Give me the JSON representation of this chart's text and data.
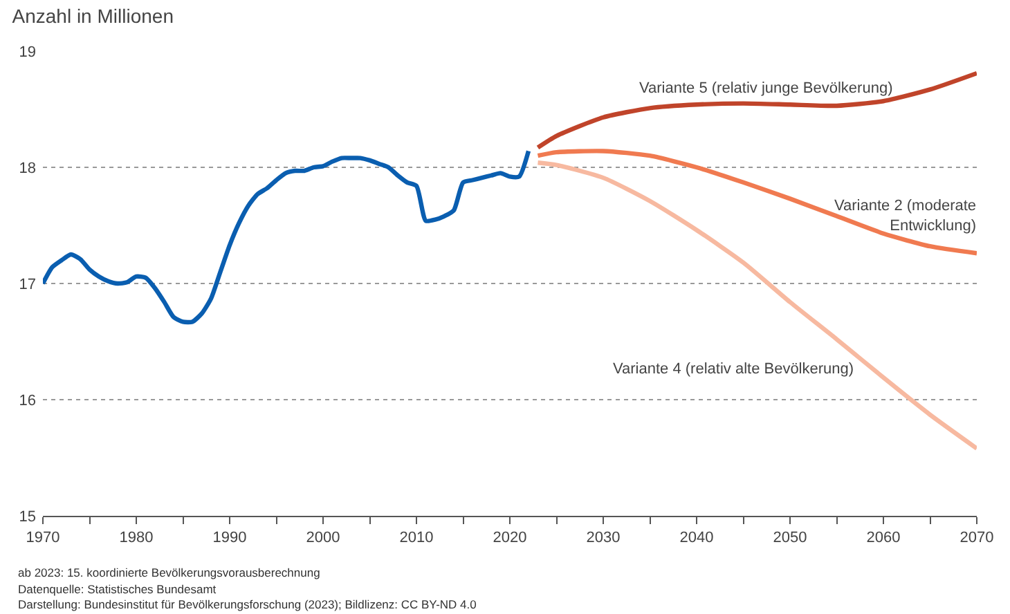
{
  "chart_data": {
    "type": "line",
    "ylabel": "Anzahl in Millionen",
    "xlim": [
      1970,
      2070
    ],
    "xticks": [
      1970,
      {
        "value": 1975,
        "label": null
      },
      1980,
      {
        "value": 1985,
        "label": null
      },
      1990,
      {
        "value": 1995,
        "label": null
      },
      2000,
      {
        "value": 2005,
        "label": null
      },
      2010,
      {
        "value": 2015,
        "label": null
      },
      2020,
      {
        "value": 2025,
        "label": null
      },
      2030,
      {
        "value": 2035,
        "label": null
      },
      2040,
      {
        "value": 2045,
        "label": null
      },
      2050,
      {
        "value": 2055,
        "label": null
      },
      2060,
      {
        "value": 2065,
        "label": null
      },
      2070
    ],
    "ylim": [
      15,
      19
    ],
    "yticks": [
      15,
      16,
      17,
      18,
      19
    ],
    "grid": "y",
    "legend": false,
    "line_style": "solid",
    "marker": "none",
    "series": [
      {
        "color": "#0a5eb0",
        "x": [
          1970,
          1971,
          1972,
          1973,
          1974,
          1975,
          1976,
          1977,
          1978,
          1979,
          1980,
          1981,
          1982,
          1983,
          1984,
          1985,
          1986,
          1987,
          1988,
          1989,
          1990,
          1991,
          1992,
          1993,
          1994,
          1995,
          1996,
          1997,
          1998,
          1999,
          2000,
          2001,
          2002,
          2003,
          2004,
          2005,
          2006,
          2007,
          2008,
          2009,
          2010,
          2011,
          2012,
          2013,
          2014,
          2015,
          2016,
          2017,
          2018,
          2019,
          2020,
          2021,
          2022
        ],
        "values": [
          17.0,
          17.14,
          17.2,
          17.25,
          17.21,
          17.12,
          17.06,
          17.02,
          17.0,
          17.01,
          17.06,
          17.05,
          16.96,
          16.84,
          16.71,
          16.67,
          16.67,
          16.74,
          16.87,
          17.1,
          17.33,
          17.52,
          17.67,
          17.77,
          17.82,
          17.89,
          17.95,
          17.97,
          17.97,
          18.0,
          18.01,
          18.05,
          18.08,
          18.08,
          18.08,
          18.06,
          18.03,
          18.0,
          17.93,
          17.87,
          17.84,
          17.54,
          17.55,
          17.58,
          17.63,
          17.87,
          17.89,
          17.91,
          17.93,
          17.95,
          17.92,
          17.92,
          18.14
        ]
      },
      {
        "name": "Variante 5 (relativ junge Bevölkerung)",
        "color": "#c0442a",
        "x": [
          2023,
          2025,
          2030,
          2035,
          2040,
          2045,
          2050,
          2055,
          2060,
          2065,
          2070
        ],
        "values": [
          18.17,
          18.27,
          18.43,
          18.51,
          18.54,
          18.55,
          18.54,
          18.53,
          18.57,
          18.67,
          18.81
        ]
      },
      {
        "name": "Variante 2 (moderate Entwicklung)",
        "color": "#f07a50",
        "x": [
          2023,
          2025,
          2030,
          2035,
          2040,
          2045,
          2050,
          2055,
          2060,
          2065,
          2070
        ],
        "values": [
          18.1,
          18.13,
          18.14,
          18.1,
          18.0,
          17.87,
          17.73,
          17.58,
          17.43,
          17.32,
          17.26
        ]
      },
      {
        "name": "Variante 4 (relativ alte Bevölkerung)",
        "color": "#f7b9a0",
        "x": [
          2023,
          2025,
          2030,
          2035,
          2040,
          2045,
          2050,
          2055,
          2060,
          2065,
          2070
        ],
        "values": [
          18.04,
          18.02,
          17.91,
          17.71,
          17.46,
          17.18,
          16.84,
          16.52,
          16.19,
          15.87,
          15.58
        ]
      }
    ],
    "annotations": [
      "ab 2023: 15. koordinierte Bevölkerungsvorausberechnung",
      "Datenquelle: Statistisches Bundesamt",
      "Darstellung: Bundesinstitut für Bevölkerungsforschung (2023); Bildlizenz: CC BY-ND 4.0"
    ]
  }
}
